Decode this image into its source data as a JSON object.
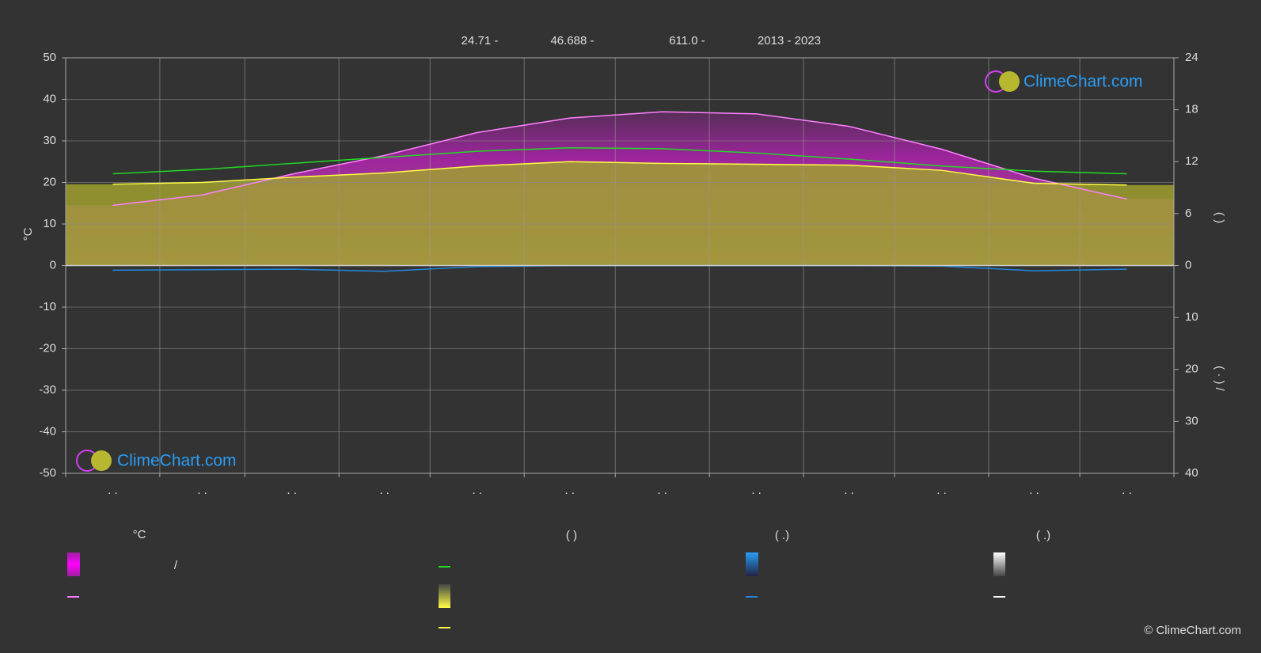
{
  "chart_data": {
    "type": "line",
    "annotations": [
      "24.71 -",
      "46.688 -",
      "611.0 -",
      "2013 - 2023"
    ],
    "ylabel": "°C",
    "y2label": "(    )",
    "y3label": "( · )   /",
    "categories": [
      ". .",
      ". .",
      ". .",
      ". .",
      ". .",
      ". .",
      ". .",
      ". .",
      ". .",
      ". .",
      ". .",
      ". ."
    ],
    "ylim": [
      -50,
      50
    ],
    "yticks": [
      50,
      40,
      30,
      20,
      10,
      0,
      -10,
      -20,
      -30,
      -40,
      -50
    ],
    "y2lim": [
      0,
      24
    ],
    "y2ticks": [
      24,
      18,
      12,
      6,
      0
    ],
    "y3lim": [
      0,
      40
    ],
    "y3ticks": [
      10,
      20,
      30,
      40
    ],
    "grid": true,
    "series": [
      {
        "color": "#ff80ff",
        "values": [
          14.5,
          17,
          22,
          26.5,
          32,
          35.5,
          37,
          36.5,
          33.5,
          28,
          21,
          16
        ]
      },
      {
        "color": "#22dd22",
        "axis": "y2",
        "values": [
          10.6,
          11.1,
          11.8,
          12.5,
          13.2,
          13.6,
          13.5,
          13.0,
          12.3,
          11.5,
          10.9,
          10.6
        ]
      },
      {
        "color": "#ffff44",
        "axis": "y2",
        "values": [
          9.4,
          9.6,
          10.2,
          10.7,
          11.5,
          12.0,
          11.8,
          11.7,
          11.6,
          11.0,
          9.5,
          9.3
        ]
      },
      {
        "color": "#2288dd",
        "axis": "y3",
        "values": [
          0.9,
          0.8,
          0.7,
          1.1,
          0.2,
          0,
          0,
          0,
          0,
          0.1,
          1.0,
          0.7
        ]
      }
    ],
    "legend_headings": [
      "°C",
      "(          )",
      "(   .)",
      "(   .)"
    ],
    "legend_texts": [
      "/"
    ],
    "watermark": "ClimeChart.com",
    "copyright": "© ClimeChart.com"
  }
}
